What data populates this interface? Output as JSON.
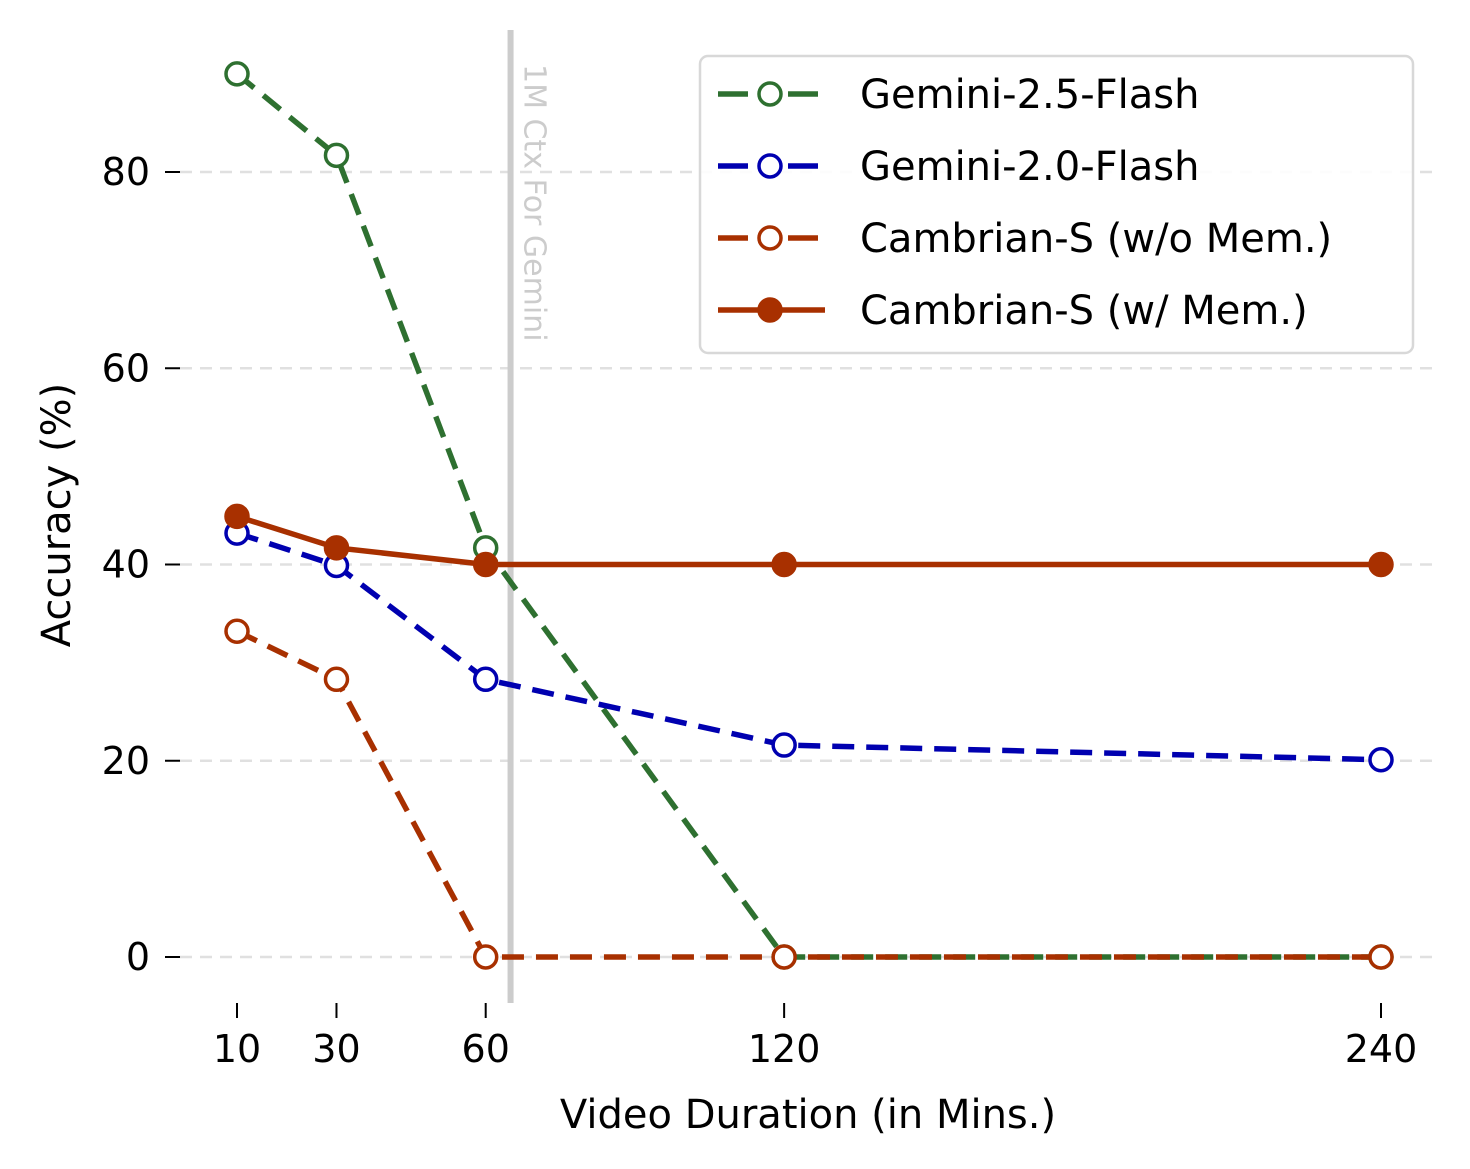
{
  "chart_data": {
    "type": "line",
    "title": "",
    "xlabel": "Video Duration (in Mins.)",
    "ylabel": "Accuracy (%)",
    "x": [
      10,
      30,
      60,
      120,
      240
    ],
    "xticks": [
      "10",
      "30",
      "60",
      "120",
      "240"
    ],
    "yticks": [
      "0",
      "20",
      "40",
      "60",
      "80"
    ],
    "ytick_values": [
      0,
      20,
      40,
      60,
      80
    ],
    "xlim": [
      -4.5,
      250
    ],
    "ylim": [
      -4.5,
      94.5
    ],
    "grid": "horizontal dashed",
    "legend_placement": "top-right",
    "annotation": {
      "x": 65,
      "text": "1M Ctx For Gemini"
    },
    "series": [
      {
        "name": "Gemini-2.5-Flash",
        "values": [
          90.0,
          81.7,
          41.7,
          0,
          0
        ],
        "color": "#2e7030",
        "style": "dashed",
        "marker": "open-circle"
      },
      {
        "name": "Gemini-2.0-Flash",
        "values": [
          43.2,
          39.9,
          28.3,
          21.6,
          20.1
        ],
        "color": "#0000b0",
        "style": "dashed",
        "marker": "open-circle"
      },
      {
        "name": "Cambrian-S (w/o Mem.)",
        "values": [
          33.2,
          28.3,
          0,
          0,
          0
        ],
        "color": "#a83000",
        "style": "dashed",
        "marker": "open-circle"
      },
      {
        "name": "Cambrian-S (w/ Mem.)",
        "values": [
          44.9,
          41.7,
          40.0,
          40.0,
          40.0
        ],
        "color": "#a83000",
        "style": "solid",
        "marker": "filled-circle"
      }
    ]
  }
}
